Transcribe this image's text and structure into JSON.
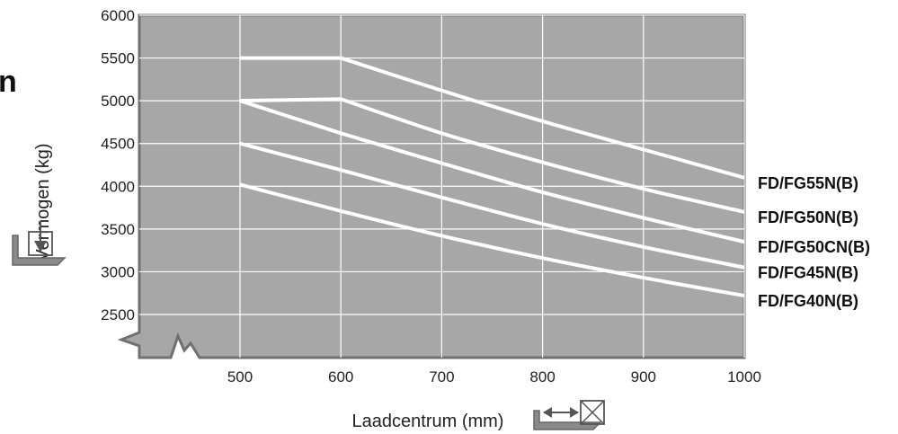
{
  "chart_data": {
    "type": "line",
    "title": "",
    "xlabel": "Laadcentrum (mm)",
    "ylabel": "Vermogen (kg)",
    "cropped_heading_fragment": "n",
    "xlim": [
      500,
      1000
    ],
    "ylim": [
      2500,
      6000
    ],
    "x_ticks": [
      "500",
      "600",
      "700",
      "800",
      "900",
      "1000"
    ],
    "y_ticks": [
      "2500",
      "3000",
      "3500",
      "4000",
      "4500",
      "5000",
      "5500",
      "6000"
    ],
    "axis_break": true,
    "grid": true,
    "legend": "right, end of each line",
    "colors": {
      "plot_bg": "#a7a7a7",
      "frame": "#707070",
      "line": "#ffffff",
      "grid": "#ffffff"
    },
    "series": [
      {
        "name": "FD/FG55N(B)",
        "x": [
          500,
          600,
          700,
          800,
          900,
          1000
        ],
        "y": [
          5500,
          5500,
          5120,
          4760,
          4430,
          4100
        ]
      },
      {
        "name": "FD/FG50N(B)",
        "x": [
          500,
          600,
          700,
          800,
          900,
          1000
        ],
        "y": [
          5000,
          5020,
          4620,
          4280,
          3970,
          3700
        ]
      },
      {
        "name": "FD/FG50CN(B)",
        "x": [
          500,
          600,
          700,
          800,
          900,
          1000
        ],
        "y": [
          5000,
          4620,
          4270,
          3930,
          3630,
          3350
        ]
      },
      {
        "name": "FD/FG45N(B)",
        "x": [
          500,
          600,
          700,
          800,
          900,
          1000
        ],
        "y": [
          4500,
          4190,
          3870,
          3560,
          3290,
          3050
        ]
      },
      {
        "name": "FD/FG40N(B)",
        "x": [
          500,
          600,
          700,
          800,
          900,
          1000
        ],
        "y": [
          4020,
          3710,
          3420,
          3160,
          2930,
          2720
        ]
      }
    ]
  }
}
